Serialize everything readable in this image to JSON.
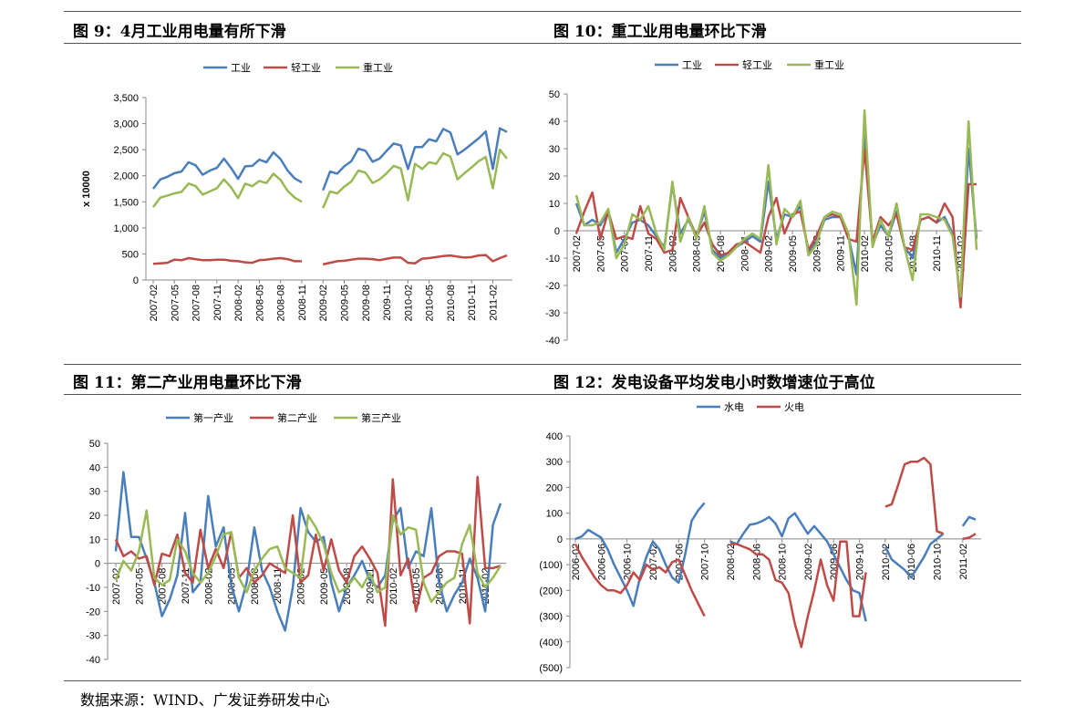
{
  "chart_data": [
    {
      "type": "line",
      "title": "图 9：4月工业用电量有所下滑",
      "y_label": "x 10000",
      "legend": "top",
      "grid": false,
      "categories": [
        "2007-02",
        null,
        null,
        "2007-05",
        null,
        null,
        "2007-08",
        null,
        null,
        "2007-11",
        null,
        null,
        "2008-02",
        null,
        null,
        "2008-05",
        null,
        null,
        "2008-08",
        null,
        null,
        "2008-11",
        null,
        null,
        "2009-02",
        null,
        null,
        "2009-05",
        null,
        null,
        "2009-08",
        null,
        null,
        "2009-11",
        null,
        null,
        "2010-02",
        null,
        null,
        "2010-05",
        null,
        null,
        "2010-08",
        null,
        null,
        "2010-11",
        null,
        null,
        "2011-02",
        null,
        null
      ],
      "ylim": [
        0,
        3500
      ],
      "yticks": [
        0,
        500,
        {
          "value": 1000,
          "label": "1,000"
        },
        {
          "value": 1500,
          "label": "1,500"
        },
        {
          "value": 2000,
          "label": "2,000"
        },
        {
          "value": 2500,
          "label": "2,500"
        },
        {
          "value": 3000,
          "label": "3,000"
        },
        {
          "value": 3500,
          "label": "3,500"
        }
      ],
      "series": [
        {
          "name": "工业",
          "color": "#4a7ebb",
          "values": [
            1750,
            1930,
            1980,
            2050,
            2080,
            2260,
            2200,
            2020,
            2100,
            2150,
            2330,
            2150,
            1940,
            2180,
            2190,
            2310,
            2260,
            2450,
            2320,
            2100,
            1950,
            1870,
            null,
            null,
            1720,
            2080,
            2040,
            2180,
            2280,
            2520,
            2480,
            2270,
            2330,
            2480,
            2620,
            2580,
            2130,
            2550,
            2550,
            2700,
            2660,
            2900,
            2830,
            2410,
            2500,
            2610,
            2720,
            2850,
            2130,
            2910,
            2840
          ]
        },
        {
          "name": "轻工业",
          "color": "#be4b48",
          "values": [
            310,
            320,
            330,
            390,
            380,
            420,
            400,
            380,
            380,
            390,
            390,
            370,
            360,
            340,
            330,
            380,
            390,
            410,
            420,
            400,
            360,
            360,
            null,
            null,
            300,
            330,
            360,
            370,
            390,
            410,
            410,
            400,
            380,
            410,
            430,
            430,
            330,
            320,
            410,
            420,
            440,
            460,
            470,
            450,
            430,
            440,
            470,
            480,
            360,
            420,
            470
          ]
        },
        {
          "name": "重工业",
          "color": "#98b954",
          "values": [
            1400,
            1580,
            1620,
            1660,
            1690,
            1850,
            1800,
            1640,
            1700,
            1760,
            1930,
            1780,
            1570,
            1850,
            1800,
            1900,
            1860,
            2040,
            1920,
            1710,
            1580,
            1500,
            null,
            null,
            1380,
            1700,
            1660,
            1790,
            1890,
            2100,
            2060,
            1860,
            1930,
            2050,
            2190,
            2140,
            1530,
            2230,
            2130,
            2260,
            2230,
            2430,
            2370,
            1930,
            2050,
            2160,
            2280,
            2360,
            1760,
            2500,
            2330
          ]
        }
      ]
    },
    {
      "type": "line",
      "title": "图 10：重工业用电量环比下滑",
      "legend": "top",
      "grid": false,
      "categories": [
        "2007-02",
        null,
        null,
        "2007-05",
        null,
        null,
        "2007-08",
        null,
        null,
        "2007-11",
        null,
        null,
        "2008-02",
        null,
        null,
        "2008-05",
        null,
        null,
        "2008-08",
        null,
        null,
        "2008-11",
        null,
        null,
        "2009-02",
        null,
        null,
        "2009-05",
        null,
        null,
        "2009-08",
        null,
        null,
        "2009-11",
        null,
        null,
        "2010-02",
        null,
        null,
        "2010-05",
        null,
        null,
        "2010-08",
        null,
        null,
        "2010-11",
        null,
        null,
        "2011-02",
        null,
        null
      ],
      "ylim": [
        -40,
        50
      ],
      "yticks": [
        -40,
        -30,
        -20,
        -10,
        0,
        10,
        20,
        30,
        40,
        50
      ],
      "series": [
        {
          "name": "工业",
          "color": "#4a7ebb",
          "values": [
            10,
            2,
            4,
            2,
            7,
            -8,
            -3,
            3,
            4,
            2,
            -2,
            -6,
            17,
            -1,
            4,
            -2,
            7,
            -7,
            -10,
            -8,
            -6,
            -4,
            -2,
            -4,
            18,
            -3,
            6,
            5,
            9,
            -8,
            -4,
            4,
            5,
            5,
            -2,
            -16,
            36,
            -5,
            2,
            -2,
            7,
            -6,
            -10,
            4,
            5,
            3,
            5,
            -1,
            -25,
            30,
            -3
          ]
        },
        {
          "name": "轻工业",
          "color": "#be4b48",
          "values": [
            -1,
            7,
            14,
            -3,
            7,
            -3,
            -2,
            -3,
            9,
            -1,
            -3,
            -8,
            -7,
            12,
            5,
            -2,
            3,
            -5,
            -9,
            -8,
            -5,
            -4,
            -6,
            -8,
            5,
            12,
            -1,
            6,
            7,
            -7,
            -2,
            5,
            6,
            5,
            -3,
            -4,
            30,
            -4,
            5,
            2,
            6,
            -6,
            -7,
            4,
            5,
            3,
            10,
            5,
            -28,
            17,
            17
          ]
        },
        {
          "name": "重工业",
          "color": "#98b954",
          "values": [
            13,
            2,
            2,
            3,
            8,
            -10,
            -5,
            6,
            4,
            9,
            -1,
            -7,
            18,
            -4,
            5,
            -3,
            9,
            -8,
            -11,
            -9,
            -6,
            -3,
            -1,
            -3,
            24,
            -5,
            8,
            5,
            11,
            -9,
            -5,
            5,
            7,
            6,
            -1,
            -27,
            44,
            -6,
            4,
            -2,
            10,
            -6,
            -18,
            6,
            6,
            5,
            4,
            -2,
            -24,
            40,
            -7
          ]
        }
      ]
    },
    {
      "type": "line",
      "title": "图 11：第二产业用电量环比下滑",
      "legend": "top",
      "grid": false,
      "categories": [
        "2007-02",
        null,
        null,
        "2007-05",
        null,
        null,
        "2007-08",
        null,
        null,
        "2007-11",
        null,
        null,
        "2008-02",
        null,
        null,
        "2008-05",
        null,
        null,
        "2008-08",
        null,
        null,
        "2008-11",
        null,
        null,
        "2009-02",
        null,
        null,
        "2009-05",
        null,
        null,
        "2009-08",
        null,
        null,
        "2009-11",
        null,
        null,
        "2010-02",
        null,
        null,
        "2010-05",
        null,
        null,
        "2010-08",
        null,
        null,
        "2010-11",
        null,
        null,
        "2011-02",
        null,
        null
      ],
      "ylim": [
        -40,
        50
      ],
      "yticks": [
        -40,
        -30,
        -20,
        -10,
        0,
        10,
        20,
        30,
        40,
        50
      ],
      "series": [
        {
          "name": "第一产业",
          "color": "#4a7ebb",
          "values": [
            5,
            38,
            11,
            11,
            2,
            -8,
            -22,
            -15,
            -5,
            21,
            -12,
            -8,
            28,
            7,
            15,
            -9,
            -20,
            -8,
            15,
            -3,
            -10,
            -20,
            -28,
            -10,
            23,
            13,
            9,
            11,
            -8,
            -20,
            -10,
            -5,
            1,
            -7,
            -10,
            -5,
            18,
            23,
            -2,
            5,
            3,
            23,
            -8,
            -20,
            -13,
            -8,
            2,
            -6,
            -20,
            16,
            25
          ]
        },
        {
          "name": "第二产业",
          "color": "#be4b48",
          "values": [
            10,
            3,
            5,
            2,
            3,
            -9,
            4,
            3,
            12,
            -4,
            -8,
            14,
            -2,
            6,
            -2,
            13,
            -6,
            -2,
            -8,
            -5,
            0,
            -2,
            -4,
            20,
            -8,
            -5,
            12,
            -3,
            10,
            -3,
            -8,
            3,
            7,
            2,
            -4,
            -26,
            35,
            -5,
            2,
            -20,
            -6,
            -4,
            3,
            5,
            5,
            4,
            -25,
            36,
            -2,
            -2,
            -1
          ]
        },
        {
          "name": "第三产业",
          "color": "#98b954",
          "values": [
            -7,
            1,
            -3,
            5,
            22,
            -6,
            -9,
            -7,
            10,
            5,
            -4,
            -8,
            -4,
            3,
            12,
            13,
            -6,
            -12,
            -3,
            2,
            6,
            7,
            -2,
            -4,
            -6,
            20,
            15,
            8,
            -4,
            -12,
            -10,
            -6,
            -10,
            -4,
            -12,
            -10,
            20,
            12,
            15,
            14,
            -8,
            -16,
            -12,
            -8,
            -6,
            8,
            16,
            -4,
            -10,
            -6,
            -1
          ]
        }
      ]
    },
    {
      "type": "line",
      "title": "图 12：发电设备平均发电小时数增速位于高位",
      "legend": "top",
      "grid": false,
      "categories": [
        "2006-02",
        null,
        null,
        null,
        "2006-06",
        null,
        null,
        null,
        "2006-10",
        null,
        null,
        null,
        "2007-02",
        null,
        null,
        null,
        "2007-06",
        null,
        null,
        null,
        "2007-10",
        null,
        null,
        null,
        "2008-02",
        null,
        null,
        null,
        "2008-06",
        null,
        null,
        null,
        "2008-10",
        null,
        null,
        null,
        "2009-02",
        null,
        null,
        null,
        "2009-06",
        null,
        null,
        null,
        "2009-10",
        null,
        null,
        null,
        "2010-02",
        null,
        null,
        null,
        "2010-06",
        null,
        null,
        null,
        "2010-10",
        null,
        null,
        null,
        "2011-02",
        null,
        null
      ],
      "ylim": [
        -500,
        400
      ],
      "yticks": [
        {
          "value": -500,
          "label": "(500)"
        },
        {
          "value": -400,
          "label": "(400)"
        },
        {
          "value": -300,
          "label": "(300)"
        },
        {
          "value": -200,
          "label": "(200)"
        },
        {
          "value": -100,
          "label": "(100)"
        },
        0,
        100,
        200,
        300,
        400
      ],
      "series": [
        {
          "name": "水电",
          "color": "#4a7ebb",
          "values": [
            0,
            10,
            35,
            20,
            5,
            -40,
            -100,
            -150,
            -200,
            -260,
            -150,
            -70,
            -10,
            -40,
            -100,
            -150,
            -170,
            -60,
            70,
            110,
            140,
            null,
            null,
            null,
            -10,
            -20,
            20,
            55,
            60,
            70,
            85,
            60,
            10,
            80,
            100,
            60,
            20,
            50,
            20,
            -10,
            -60,
            -110,
            -160,
            -200,
            -210,
            -320,
            null,
            null,
            -30,
            -80,
            -100,
            -120,
            -150,
            -110,
            -70,
            -20,
            0,
            20,
            null,
            null,
            50,
            85,
            75
          ]
        },
        {
          "name": "火电",
          "color": "#be4b48",
          "values": [
            -20,
            -70,
            -110,
            -150,
            -180,
            -200,
            -200,
            -210,
            -180,
            -130,
            -160,
            -100,
            -120,
            -110,
            -130,
            -90,
            -80,
            -140,
            -200,
            -250,
            -300,
            null,
            null,
            null,
            -20,
            -20,
            -30,
            -40,
            -60,
            -60,
            -80,
            -160,
            -170,
            -210,
            -330,
            -420,
            -300,
            -200,
            -80,
            -180,
            -240,
            -10,
            -10,
            -300,
            -300,
            -130,
            null,
            null,
            125,
            135,
            210,
            290,
            300,
            300,
            315,
            290,
            30,
            20,
            null,
            null,
            0,
            5,
            20
          ]
        }
      ]
    }
  ],
  "source": "数据来源：WIND、广发证券研发中心"
}
